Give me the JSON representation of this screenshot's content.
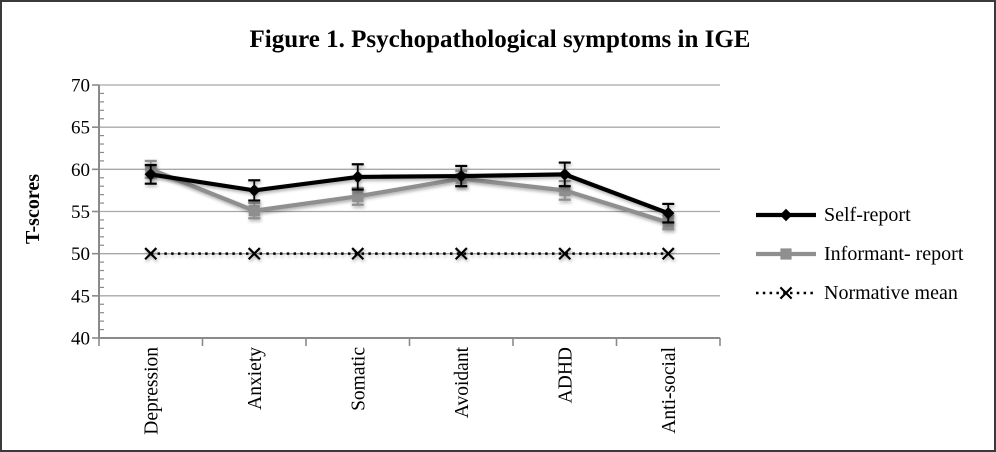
{
  "figure": {
    "title": "Figure 1. Psychopathological symptoms in IGE"
  },
  "chart_data": {
    "type": "line",
    "title": "Figure 1. Psychopathological symptoms in IGE",
    "xlabel": "",
    "ylabel": "T-scores",
    "categories": [
      "Depression",
      "Anxiety",
      "Somatic",
      "Avoidant",
      "ADHD",
      "Anti-social"
    ],
    "y_ticks": [
      40,
      45,
      50,
      55,
      60,
      65,
      70
    ],
    "ylim": [
      40,
      70
    ],
    "y_minor_step": 1,
    "grid": "horizontal-major",
    "legend_position": "right",
    "series": [
      {
        "name": "Self-report",
        "marker": "diamond",
        "color": "#000000",
        "style": "solid",
        "values": [
          59.4,
          57.5,
          59.1,
          59.2,
          59.4,
          54.8
        ],
        "error": [
          1.1,
          1.2,
          1.5,
          1.2,
          1.4,
          1.1
        ]
      },
      {
        "name": "Informant- report",
        "marker": "square",
        "color": "#8f8f8f",
        "style": "solid",
        "values": [
          60.0,
          55.1,
          56.8,
          58.9,
          57.5,
          53.7
        ],
        "error": [
          1.0,
          0.9,
          1.0,
          0.9,
          1.1,
          0.8
        ]
      },
      {
        "name": "Normative mean",
        "marker": "x",
        "color": "#000000",
        "style": "dotted",
        "values": [
          50,
          50,
          50,
          50,
          50,
          50
        ],
        "error": [
          0,
          0,
          0,
          0,
          0,
          0
        ]
      }
    ]
  },
  "colors": {
    "axis": "#8a8a8a",
    "gridline": "#a8a8a8",
    "frame": "#3a3a3a",
    "background": "#ffffff",
    "text": "#000000"
  }
}
